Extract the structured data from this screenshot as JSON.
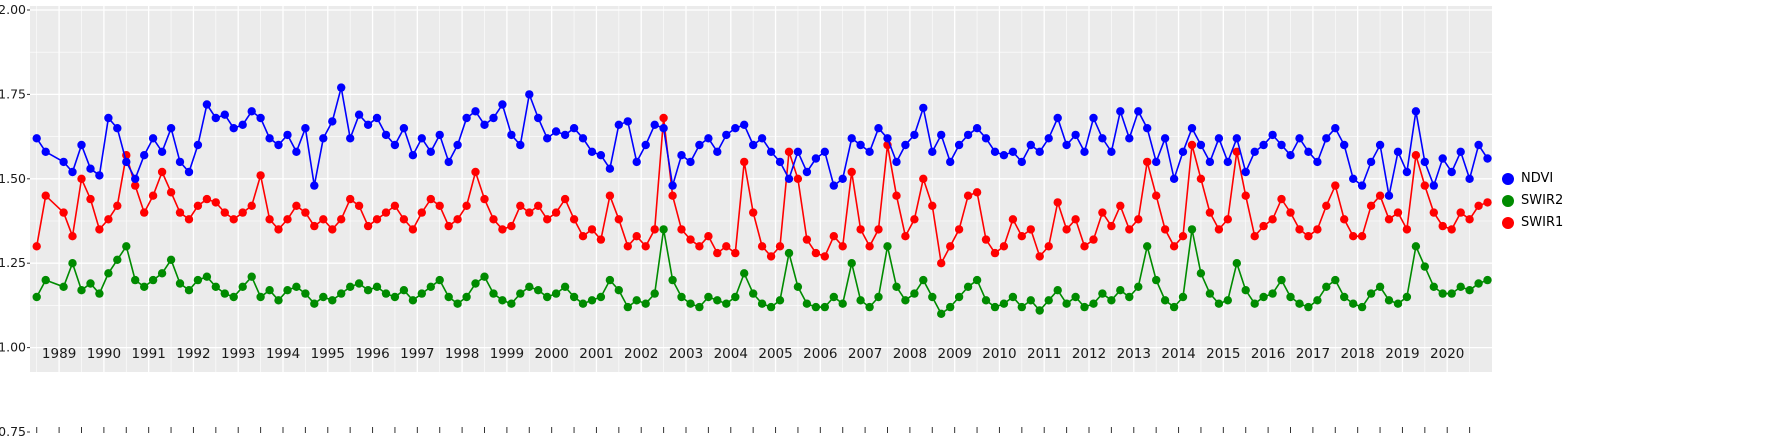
{
  "chart_data": {
    "type": "line",
    "title": "",
    "xlabel": "",
    "ylabel": "",
    "grid": true,
    "background": "#EBEBEB",
    "gridline_color": "#FFFFFF",
    "legend_position": "right",
    "ylim": [
      0.75,
      2.0
    ],
    "yticks": [
      2.0,
      1.75,
      1.5,
      1.25,
      1.0,
      0.75
    ],
    "ytick_labels": [
      "2.00",
      "1.75",
      "1.50",
      "1.25",
      "1.00",
      "0.75"
    ],
    "xlim": [
      1988.35,
      2021.0
    ],
    "x_years": [
      1989,
      1990,
      1991,
      1992,
      1993,
      1994,
      1995,
      1996,
      1997,
      1998,
      1999,
      2000,
      2001,
      2002,
      2003,
      2004,
      2005,
      2006,
      2007,
      2008,
      2009,
      2010,
      2011,
      2012,
      2013,
      2014,
      2015,
      2016,
      2017,
      2018,
      2019,
      2020
    ],
    "x_leading": [
      1988.5,
      1988.7
    ],
    "x_offsets": [
      0.1,
      0.3,
      0.5,
      0.7,
      0.9
    ],
    "series": [
      {
        "name": "NDVI",
        "color": "#0000FF",
        "values": [
          1.62,
          1.58,
          1.55,
          1.52,
          1.6,
          1.53,
          1.51,
          1.68,
          1.65,
          1.55,
          1.5,
          1.57,
          1.62,
          1.58,
          1.65,
          1.55,
          1.52,
          1.6,
          1.72,
          1.68,
          1.69,
          1.65,
          1.66,
          1.7,
          1.68,
          1.62,
          1.6,
          1.63,
          1.58,
          1.65,
          1.48,
          1.62,
          1.67,
          1.77,
          1.62,
          1.69,
          1.66,
          1.68,
          1.63,
          1.6,
          1.65,
          1.57,
          1.62,
          1.58,
          1.63,
          1.55,
          1.6,
          1.68,
          1.7,
          1.66,
          1.68,
          1.72,
          1.63,
          1.6,
          1.75,
          1.68,
          1.62,
          1.64,
          1.63,
          1.65,
          1.62,
          1.58,
          1.57,
          1.53,
          1.66,
          1.67,
          1.55,
          1.6,
          1.66,
          1.65,
          1.48,
          1.57,
          1.55,
          1.6,
          1.62,
          1.58,
          1.63,
          1.65,
          1.66,
          1.6,
          1.62,
          1.58,
          1.55,
          1.5,
          1.58,
          1.52,
          1.56,
          1.58,
          1.48,
          1.5,
          1.62,
          1.6,
          1.58,
          1.65,
          1.62,
          1.55,
          1.6,
          1.63,
          1.71,
          1.58,
          1.63,
          1.55,
          1.6,
          1.63,
          1.65,
          1.62,
          1.58,
          1.57,
          1.58,
          1.55,
          1.6,
          1.58,
          1.62,
          1.68,
          1.6,
          1.63,
          1.58,
          1.68,
          1.62,
          1.58,
          1.7,
          1.62,
          1.7,
          1.65,
          1.55,
          1.62,
          1.5,
          1.58,
          1.65,
          1.6,
          1.55,
          1.62,
          1.55,
          1.62,
          1.52,
          1.58,
          1.6,
          1.63,
          1.6,
          1.57,
          1.62,
          1.58,
          1.55,
          1.62,
          1.65,
          1.6,
          1.5,
          1.48,
          1.55,
          1.6,
          1.45,
          1.58,
          1.52,
          1.7,
          1.55,
          1.48,
          1.56,
          1.52,
          1.58,
          1.5,
          1.6,
          1.56
        ]
      },
      {
        "name": "SWIR2",
        "color": "#008B00",
        "values": [
          1.15,
          1.2,
          1.18,
          1.25,
          1.17,
          1.19,
          1.16,
          1.22,
          1.26,
          1.3,
          1.2,
          1.18,
          1.2,
          1.22,
          1.26,
          1.19,
          1.17,
          1.2,
          1.21,
          1.18,
          1.16,
          1.15,
          1.18,
          1.21,
          1.15,
          1.17,
          1.14,
          1.17,
          1.18,
          1.16,
          1.13,
          1.15,
          1.14,
          1.16,
          1.18,
          1.19,
          1.17,
          1.18,
          1.16,
          1.15,
          1.17,
          1.14,
          1.16,
          1.18,
          1.2,
          1.15,
          1.13,
          1.15,
          1.19,
          1.21,
          1.16,
          1.14,
          1.13,
          1.16,
          1.18,
          1.17,
          1.15,
          1.16,
          1.18,
          1.15,
          1.13,
          1.14,
          1.15,
          1.2,
          1.17,
          1.12,
          1.14,
          1.13,
          1.16,
          1.35,
          1.2,
          1.15,
          1.13,
          1.12,
          1.15,
          1.14,
          1.13,
          1.15,
          1.22,
          1.16,
          1.13,
          1.12,
          1.14,
          1.28,
          1.18,
          1.13,
          1.12,
          1.12,
          1.15,
          1.13,
          1.25,
          1.14,
          1.12,
          1.15,
          1.3,
          1.18,
          1.14,
          1.16,
          1.2,
          1.15,
          1.1,
          1.12,
          1.15,
          1.18,
          1.2,
          1.14,
          1.12,
          1.13,
          1.15,
          1.12,
          1.14,
          1.11,
          1.14,
          1.17,
          1.13,
          1.15,
          1.12,
          1.13,
          1.16,
          1.14,
          1.17,
          1.15,
          1.18,
          1.3,
          1.2,
          1.14,
          1.12,
          1.15,
          1.35,
          1.22,
          1.16,
          1.13,
          1.14,
          1.25,
          1.17,
          1.13,
          1.15,
          1.16,
          1.2,
          1.15,
          1.13,
          1.12,
          1.14,
          1.18,
          1.2,
          1.15,
          1.13,
          1.12,
          1.16,
          1.18,
          1.14,
          1.13,
          1.15,
          1.3,
          1.24,
          1.18,
          1.16,
          1.16,
          1.18,
          1.17,
          1.19,
          1.2
        ]
      },
      {
        "name": "SWIR1",
        "color": "#FF0000",
        "values": [
          1.3,
          1.45,
          1.4,
          1.33,
          1.5,
          1.44,
          1.35,
          1.38,
          1.42,
          1.57,
          1.48,
          1.4,
          1.45,
          1.52,
          1.46,
          1.4,
          1.38,
          1.42,
          1.44,
          1.43,
          1.4,
          1.38,
          1.4,
          1.42,
          1.51,
          1.38,
          1.35,
          1.38,
          1.42,
          1.4,
          1.36,
          1.38,
          1.35,
          1.38,
          1.44,
          1.42,
          1.36,
          1.38,
          1.4,
          1.42,
          1.38,
          1.35,
          1.4,
          1.44,
          1.42,
          1.36,
          1.38,
          1.42,
          1.52,
          1.44,
          1.38,
          1.35,
          1.36,
          1.42,
          1.4,
          1.42,
          1.38,
          1.4,
          1.44,
          1.38,
          1.33,
          1.35,
          1.32,
          1.45,
          1.38,
          1.3,
          1.33,
          1.3,
          1.35,
          1.68,
          1.45,
          1.35,
          1.32,
          1.3,
          1.33,
          1.28,
          1.3,
          1.28,
          1.55,
          1.4,
          1.3,
          1.27,
          1.3,
          1.58,
          1.5,
          1.32,
          1.28,
          1.27,
          1.33,
          1.3,
          1.52,
          1.35,
          1.3,
          1.35,
          1.6,
          1.45,
          1.33,
          1.38,
          1.5,
          1.42,
          1.25,
          1.3,
          1.35,
          1.45,
          1.46,
          1.32,
          1.28,
          1.3,
          1.38,
          1.33,
          1.35,
          1.27,
          1.3,
          1.43,
          1.35,
          1.38,
          1.3,
          1.32,
          1.4,
          1.36,
          1.42,
          1.35,
          1.38,
          1.55,
          1.45,
          1.35,
          1.3,
          1.33,
          1.6,
          1.5,
          1.4,
          1.35,
          1.38,
          1.58,
          1.45,
          1.33,
          1.36,
          1.38,
          1.44,
          1.4,
          1.35,
          1.33,
          1.35,
          1.42,
          1.48,
          1.38,
          1.33,
          1.33,
          1.42,
          1.45,
          1.38,
          1.4,
          1.35,
          1.57,
          1.48,
          1.4,
          1.36,
          1.35,
          1.4,
          1.38,
          1.42,
          1.43
        ]
      }
    ]
  },
  "legend": {
    "items": [
      {
        "label": "NDVI",
        "color": "#0000FF"
      },
      {
        "label": "SWIR2",
        "color": "#008B00"
      },
      {
        "label": "SWIR1",
        "color": "#FF0000"
      }
    ]
  }
}
